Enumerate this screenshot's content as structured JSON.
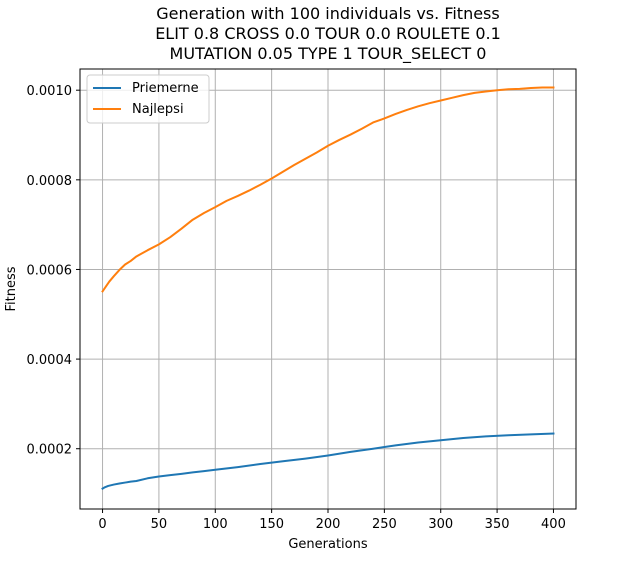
{
  "chart_data": {
    "type": "line",
    "title_lines": [
      "Generation with 100 individuals vs. Fitness",
      "ELIT 0.8 CROSS 0.0 TOUR 0.0 ROULETE 0.1",
      "MUTATION 0.05 TYPE 1 TOUR_SELECT 0"
    ],
    "xlabel": "Generations",
    "ylabel": "Fitness",
    "xlim": [
      -20,
      420
    ],
    "ylim": [
      6.55e-05,
      0.0010473
    ],
    "x_ticks": [
      0,
      50,
      100,
      150,
      200,
      250,
      300,
      350,
      400
    ],
    "x_tick_labels": [
      "0",
      "50",
      "100",
      "150",
      "200",
      "250",
      "300",
      "350",
      "400"
    ],
    "y_ticks": [
      0.0002,
      0.0004,
      0.0006,
      0.0008,
      0.001
    ],
    "y_tick_labels": [
      "0.0002",
      "0.0004",
      "0.0006",
      "0.0008",
      "0.0010"
    ],
    "grid": true,
    "legend_position": "top-left",
    "series": [
      {
        "name": "Priemerne",
        "color": "#1f77b4",
        "x": [
          0,
          2,
          5,
          10,
          15,
          20,
          25,
          30,
          40,
          50,
          60,
          70,
          80,
          90,
          100,
          120,
          140,
          160,
          180,
          200,
          220,
          240,
          260,
          280,
          300,
          320,
          340,
          360,
          380,
          400
        ],
        "y": [
          0.000111,
          0.000114,
          0.000117,
          0.00012,
          0.0001225,
          0.0001245,
          0.0001265,
          0.000128,
          0.000134,
          0.000138,
          0.000141,
          0.000144,
          0.0001473,
          0.00015,
          0.000153,
          0.000159,
          0.000166,
          0.000172,
          0.000178,
          0.000185,
          0.000193,
          0.0002,
          0.0002075,
          0.000214,
          0.000219,
          0.000224,
          0.0002275,
          0.00023,
          0.000232,
          0.000234
        ]
      },
      {
        "name": "Najlepsi",
        "color": "#ff7f0e",
        "x": [
          0,
          3,
          6,
          10,
          15,
          20,
          25,
          30,
          40,
          50,
          60,
          70,
          80,
          90,
          100,
          110,
          120,
          130,
          140,
          150,
          160,
          170,
          180,
          190,
          200,
          210,
          220,
          230,
          240,
          250,
          260,
          270,
          280,
          290,
          300,
          310,
          320,
          330,
          340,
          350,
          360,
          370,
          380,
          390,
          400
        ],
        "y": [
          0.000551,
          0.000562,
          0.000573,
          0.000585,
          0.000599,
          0.000611,
          0.000619,
          0.000629,
          0.000643,
          0.000656,
          0.000672,
          0.000691,
          0.000711,
          0.000726,
          0.000739,
          0.000753,
          0.000764,
          0.000776,
          0.000789,
          0.000803,
          0.000818,
          0.000833,
          0.000847,
          0.000861,
          0.000876,
          0.000889,
          0.000901,
          0.000914,
          0.000928,
          0.000937,
          0.000947,
          0.000956,
          0.000964,
          0.000971,
          0.000977,
          0.000983,
          0.000989,
          0.000994,
          0.000997,
          0.001,
          0.001002,
          0.001003,
          0.001005,
          0.001006,
          0.001006
        ]
      }
    ]
  }
}
